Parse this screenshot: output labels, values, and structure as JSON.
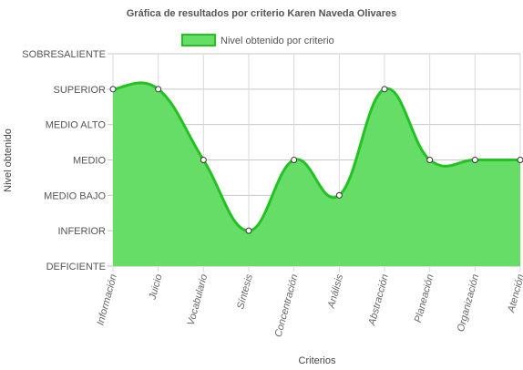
{
  "chart_data": {
    "type": "area",
    "title": "Gráfica de resultados por criterio Karen Naveda Olivares",
    "xlabel": "Criterios",
    "ylabel": "Nivel obtenido",
    "categories": [
      "Información",
      "Juicio",
      "Vocabulario",
      "Síntesis",
      "Concentración",
      "Análisis",
      "Abstracción",
      "Planeación",
      "Organización",
      "Atención"
    ],
    "y_levels": [
      "DEFICIENTE",
      "INFERIOR",
      "MEDIO BAJO",
      "MEDIO",
      "MEDIO ALTO",
      "SUPERIOR",
      "SOBRESALIENTE"
    ],
    "ylim": [
      0,
      6
    ],
    "series": [
      {
        "name": "Nivel obtenido por criterio",
        "values": [
          5,
          5,
          3,
          1,
          3,
          2,
          5,
          3,
          3,
          3
        ]
      }
    ],
    "legend_position": "top",
    "grid": true
  },
  "colors": {
    "fill": "#66dd66",
    "line": "#22c222",
    "point_fill": "#ffffff",
    "point_stroke": "#333333"
  }
}
